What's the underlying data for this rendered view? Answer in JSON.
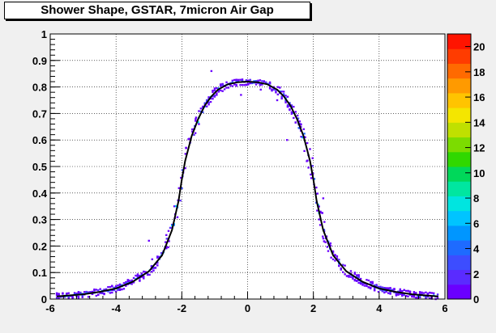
{
  "chart_data": {
    "type": "heatmap",
    "title": "Shower Shape, GSTAR, 7micron Air Gap",
    "xlabel": "",
    "ylabel": "",
    "xlim": [
      -6,
      6
    ],
    "ylim": [
      0,
      1
    ],
    "x_ticks": [
      "-6",
      "-4",
      "-2",
      "0",
      "2",
      "4",
      "6"
    ],
    "y_ticks": [
      "0",
      "0.1",
      "0.2",
      "0.3",
      "0.4",
      "0.5",
      "0.6",
      "0.7",
      "0.8",
      "0.9",
      "1"
    ],
    "grid": true,
    "colorbar": {
      "range": [
        0,
        21
      ],
      "ticks": [
        "0",
        "2",
        "4",
        "6",
        "8",
        "10",
        "12",
        "14",
        "16",
        "18",
        "20"
      ]
    },
    "fit_curve_points": [
      [
        -5.8,
        0.01
      ],
      [
        -5.0,
        0.018
      ],
      [
        -4.5,
        0.027
      ],
      [
        -4.0,
        0.04
      ],
      [
        -3.5,
        0.065
      ],
      [
        -3.0,
        0.105
      ],
      [
        -2.6,
        0.165
      ],
      [
        -2.3,
        0.26
      ],
      [
        -2.1,
        0.37
      ],
      [
        -2.0,
        0.45
      ],
      [
        -1.9,
        0.52
      ],
      [
        -1.7,
        0.615
      ],
      [
        -1.5,
        0.68
      ],
      [
        -1.3,
        0.73
      ],
      [
        -1.1,
        0.765
      ],
      [
        -0.9,
        0.79
      ],
      [
        -0.6,
        0.81
      ],
      [
        -0.3,
        0.818
      ],
      [
        0.0,
        0.82
      ],
      [
        0.3,
        0.818
      ],
      [
        0.6,
        0.81
      ],
      [
        0.9,
        0.79
      ],
      [
        1.1,
        0.765
      ],
      [
        1.3,
        0.73
      ],
      [
        1.5,
        0.68
      ],
      [
        1.7,
        0.615
      ],
      [
        1.9,
        0.52
      ],
      [
        2.0,
        0.45
      ],
      [
        2.1,
        0.37
      ],
      [
        2.3,
        0.26
      ],
      [
        2.6,
        0.165
      ],
      [
        3.0,
        0.105
      ],
      [
        3.5,
        0.065
      ],
      [
        4.0,
        0.04
      ],
      [
        4.5,
        0.027
      ],
      [
        5.0,
        0.018
      ],
      [
        5.8,
        0.01
      ]
    ]
  },
  "colors": {
    "palette": [
      "#6a00ff",
      "#5a2bff",
      "#3d4dff",
      "#1e6bff",
      "#0096ff",
      "#00c4ff",
      "#00e5e0",
      "#00e6a0",
      "#00d85a",
      "#30d800",
      "#7cdc00",
      "#c0e000",
      "#f4e600",
      "#ffc400",
      "#ff9a00",
      "#ff6a00",
      "#ff3c00",
      "#ff1400"
    ],
    "fit_line": "#000000"
  }
}
